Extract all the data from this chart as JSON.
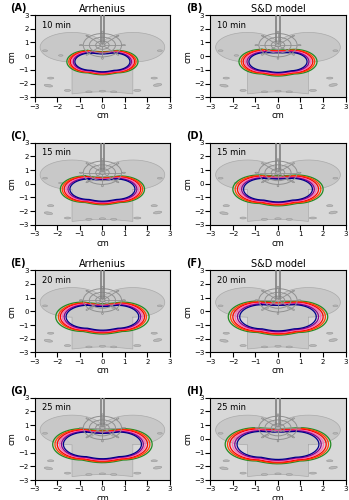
{
  "titles_left": [
    "Arrhenius",
    "Arrhenius"
  ],
  "titles_right": [
    "S&D model",
    "S&D model"
  ],
  "panel_labels": [
    "(A)",
    "(B)",
    "(C)",
    "(D)",
    "(E)",
    "(F)",
    "(G)",
    "(H)"
  ],
  "time_labels": [
    "10 min",
    "10 min",
    "15 min",
    "15 min",
    "20 min",
    "20 min",
    "25 min",
    "25 min"
  ],
  "bg_color": "#d8d8d8",
  "tissue_color": "#c8c8c8",
  "probe_color": "#909090",
  "contour_colors": [
    "#00008b",
    "#8b008b",
    "#ff69b4",
    "#ff0000",
    "#ff4500",
    "#228b22"
  ],
  "xlim": [
    -3,
    3
  ],
  "ylim": [
    -3,
    3
  ],
  "xticks": [
    -3,
    -2,
    -1,
    0,
    1,
    2,
    3
  ],
  "yticks": [
    -3,
    -2,
    -1,
    0,
    1,
    2,
    3
  ],
  "xlabel": "cm",
  "ylabel": "cm",
  "time_scales_arrhenius": [
    [
      0.72,
      0.76,
      0.8,
      0.84,
      0.88,
      0.93
    ],
    [
      0.85,
      0.9,
      0.95,
      1.0,
      1.05,
      1.1
    ],
    [
      0.95,
      1.0,
      1.05,
      1.1,
      1.15,
      1.22
    ],
    [
      1.02,
      1.07,
      1.12,
      1.18,
      1.24,
      1.3
    ]
  ],
  "time_scales_sd": [
    [
      0.76,
      0.81,
      0.86,
      0.91,
      0.96,
      1.02
    ],
    [
      0.9,
      0.95,
      1.0,
      1.06,
      1.12,
      1.18
    ],
    [
      1.0,
      1.06,
      1.12,
      1.18,
      1.24,
      1.3
    ],
    [
      1.07,
      1.13,
      1.19,
      1.26,
      1.32,
      1.38
    ]
  ],
  "small_ellipses": [
    [
      -2.4,
      -2.15,
      0.38,
      0.18,
      -15
    ],
    [
      -1.55,
      -2.5,
      0.28,
      0.14,
      0
    ],
    [
      -0.6,
      -2.6,
      0.28,
      0.13,
      0
    ],
    [
      0.5,
      -2.6,
      0.28,
      0.13,
      0
    ],
    [
      1.55,
      -2.5,
      0.32,
      0.14,
      0
    ],
    [
      2.45,
      -2.1,
      0.38,
      0.18,
      15
    ],
    [
      -2.3,
      -1.6,
      0.28,
      0.14,
      0
    ],
    [
      2.3,
      -1.6,
      0.28,
      0.14,
      0
    ],
    [
      -0.5,
      0.25,
      0.18,
      0.11,
      0
    ],
    [
      0.5,
      0.25,
      0.18,
      0.11,
      0
    ],
    [
      -2.55,
      0.4,
      0.22,
      0.12,
      0
    ],
    [
      2.55,
      0.4,
      0.22,
      0.12,
      0
    ],
    [
      -1.85,
      0.05,
      0.2,
      0.11,
      0
    ],
    [
      0.0,
      -2.55,
      0.28,
      0.13,
      0
    ]
  ]
}
